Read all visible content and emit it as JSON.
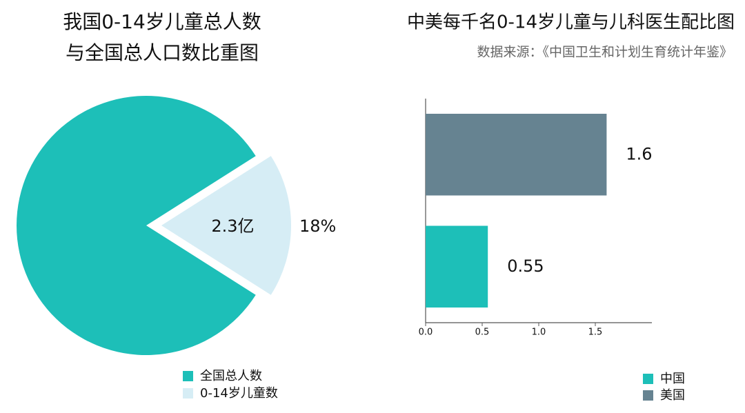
{
  "chart_data": [
    {
      "type": "pie",
      "title": [
        "我国0-14岁儿童总人数",
        "与全国总人口数比重图"
      ],
      "categories": [
        "全国总人数",
        "0-14岁儿童数"
      ],
      "values": [
        82,
        18
      ],
      "value_labels": [
        null,
        "18%"
      ],
      "annotations": [
        "2.3亿"
      ],
      "colors": [
        "#1dbfb8",
        "#d6edf5"
      ],
      "explode": [
        false,
        true
      ],
      "legend": "bottom"
    },
    {
      "type": "barh",
      "title": "中美每千名0-14岁儿童与儿科医生配比图",
      "subtitle": "数据来源：《中国卫生和计划生育统计年鉴》",
      "categories": [
        "中国",
        "美国"
      ],
      "values": [
        0.55,
        1.6
      ],
      "colors": [
        "#1dbfb8",
        "#668391"
      ],
      "xlim": [
        0,
        2.0
      ],
      "xticks": [
        {
          "value": 0,
          "label": "0.0"
        },
        {
          "value": 0.5,
          "label": "0.5"
        },
        {
          "value": 1,
          "label": "1.0"
        },
        {
          "value": 1.5,
          "label": "1.5"
        }
      ],
      "legend": "bottom-right"
    }
  ]
}
